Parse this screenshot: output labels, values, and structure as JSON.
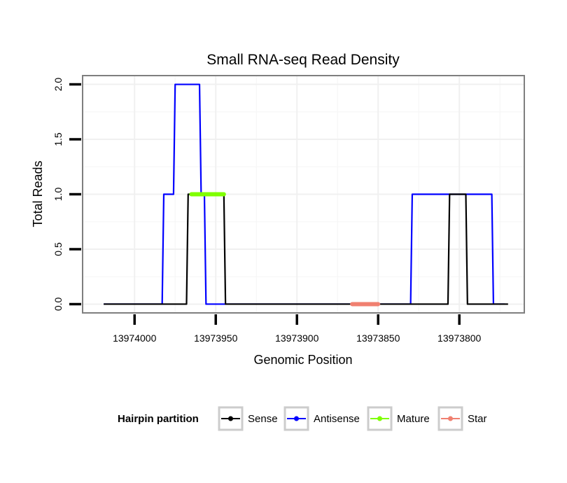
{
  "chart_data": {
    "type": "line",
    "title": "Small RNA-seq Read Density",
    "xlabel": "Genomic Position",
    "ylabel": "Total Reads",
    "x_reversed": true,
    "xlim": [
      13974032,
      13973760
    ],
    "ylim": [
      -0.08,
      2.08
    ],
    "x_ticks": [
      13974000,
      13973950,
      13973900,
      13973850,
      13973800
    ],
    "x_tick_labels": [
      "13974000",
      "13973950",
      "13973900",
      "13973850",
      "13973800"
    ],
    "y_ticks": [
      0.0,
      0.5,
      1.0,
      1.5,
      2.0
    ],
    "y_tick_labels": [
      "0.0",
      "0.5",
      "1.0",
      "1.5",
      "2.0"
    ],
    "grid": true,
    "series": [
      {
        "name": "Sense",
        "color": "#000000",
        "x": [
          13974019,
          13973968,
          13973967,
          13973945,
          13973944,
          13973873,
          13973872,
          13973862,
          13973861,
          13973807,
          13973806,
          13973796,
          13973795,
          13973770
        ],
        "y": [
          0,
          0,
          1,
          1,
          0,
          0,
          0,
          0,
          0,
          0,
          1,
          1,
          0,
          0
        ]
      },
      {
        "name": "Antisense",
        "color": "#0000ff",
        "x": [
          13974019,
          13973983,
          13973982,
          13973976,
          13973975,
          13973960,
          13973959,
          13973957,
          13973956,
          13973945,
          13973944,
          13973830,
          13973829,
          13973780,
          13973779,
          13973772
        ],
        "y": [
          0,
          0,
          1,
          1,
          2,
          2,
          1,
          1,
          0,
          0,
          0,
          0,
          1,
          1,
          0,
          0
        ]
      },
      {
        "name": "Mature",
        "color": "#7fff00",
        "x": [
          13973965,
          13973945
        ],
        "y": [
          1,
          1
        ]
      },
      {
        "name": "Star",
        "color": "#f08070",
        "x": [
          13973866,
          13973850
        ],
        "y": [
          0,
          0
        ]
      }
    ],
    "legend": {
      "title": "Hairpin partition",
      "position": "bottom",
      "entries": [
        "Sense",
        "Antisense",
        "Mature",
        "Star"
      ]
    }
  }
}
